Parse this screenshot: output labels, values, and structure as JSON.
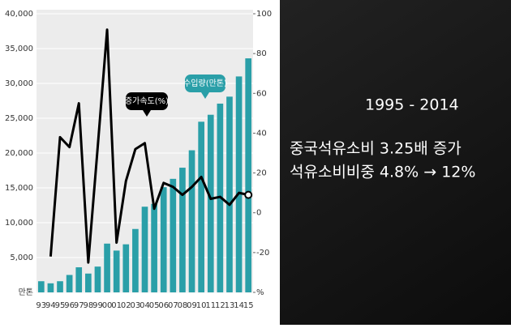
{
  "chart_data": {
    "type": "bar",
    "categories": [
      "93",
      "94",
      "95",
      "96",
      "97",
      "98",
      "99",
      "00",
      "01",
      "02",
      "03",
      "04",
      "05",
      "06",
      "07",
      "08",
      "09",
      "10",
      "11",
      "12",
      "13",
      "14",
      "15"
    ],
    "series": [
      {
        "name": "수입량(만톤)",
        "color": "#2a9fa8",
        "values": [
          1600,
          1300,
          1600,
          2500,
          3600,
          2700,
          3700,
          7000,
          6000,
          6900,
          9100,
          12300,
          12700,
          15100,
          16300,
          17900,
          20400,
          24500,
          25500,
          27100,
          28100,
          31000,
          33600
        ]
      },
      {
        "name": "증가속도(%)",
        "color": "#000000",
        "axis": "y2",
        "values": [
          null,
          -22,
          38,
          33,
          55,
          -25,
          33,
          92,
          -15,
          16,
          32,
          35,
          2,
          15,
          13,
          9,
          13,
          18,
          7,
          8,
          4,
          10,
          9
        ]
      }
    ],
    "ylim": [
      0,
      40000
    ],
    "yticks": [
      {
        "value": 0,
        "label": "만톤"
      },
      {
        "value": 5000,
        "label": "5,000"
      },
      {
        "value": 10000,
        "label": "10,000"
      },
      {
        "value": 15000,
        "label": "15,000"
      },
      {
        "value": 20000,
        "label": "20,000"
      },
      {
        "value": 25000,
        "label": "25,000"
      },
      {
        "value": 30000,
        "label": "30,000"
      },
      {
        "value": 35000,
        "label": "35,000"
      },
      {
        "value": 40000,
        "label": "40,000"
      }
    ],
    "y2lim": [
      -40,
      100
    ],
    "y2ticks": [
      {
        "value": -40,
        "label": "%"
      },
      -20,
      0,
      20,
      40,
      60,
      80,
      100
    ],
    "grid": true
  },
  "slide": {
    "period": "1995  -  2014",
    "lines": [
      "중국석유소비  3.25배 증가",
      "석유소비비중  4.8% → 12%"
    ]
  }
}
